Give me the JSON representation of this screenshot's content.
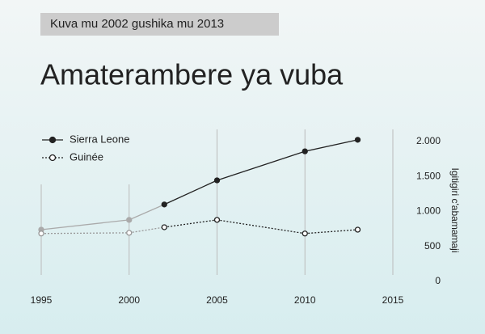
{
  "chart_data": {
    "type": "line",
    "subtitle": "Kuva mu 2002 gushika mu 2013",
    "title": "Amaterambere ya vuba",
    "y_label": "Igitigiri c'abamamaji",
    "xlim": [
      1995,
      2015
    ],
    "xticks": [
      1995,
      2000,
      2005,
      2010,
      2015
    ],
    "ylim": [
      0,
      2000
    ],
    "yticks": [
      0,
      500,
      {
        "value": 1000,
        "label": "1.000"
      },
      {
        "value": 1500,
        "label": "1.500"
      },
      {
        "value": 2000,
        "label": "2.000"
      }
    ],
    "grid": "x",
    "legend": "upper left",
    "series": [
      {
        "name": "Sierra Leone",
        "color": "#222222",
        "line_style": "solid",
        "marker": "filled",
        "x": [
          1995,
          2000,
          2002,
          2005,
          2010,
          2013
        ],
        "values": [
          740,
          880,
          1100,
          1445,
          1860,
          2025
        ],
        "point_colors": [
          "#aaaaaa",
          "#aaaaaa",
          "#222222",
          "#222222",
          "#222222",
          "#222222"
        ]
      },
      {
        "name": "Guinée",
        "color": "#222222",
        "line_style": "dotted",
        "marker": "open",
        "x": [
          1995,
          2000,
          2002,
          2005,
          2010,
          2013
        ],
        "values": [
          685,
          695,
          775,
          880,
          685,
          740
        ],
        "point_colors": [
          "#999999",
          "#999999",
          "#222222",
          "#222222",
          "#222222",
          "#222222"
        ]
      }
    ]
  }
}
